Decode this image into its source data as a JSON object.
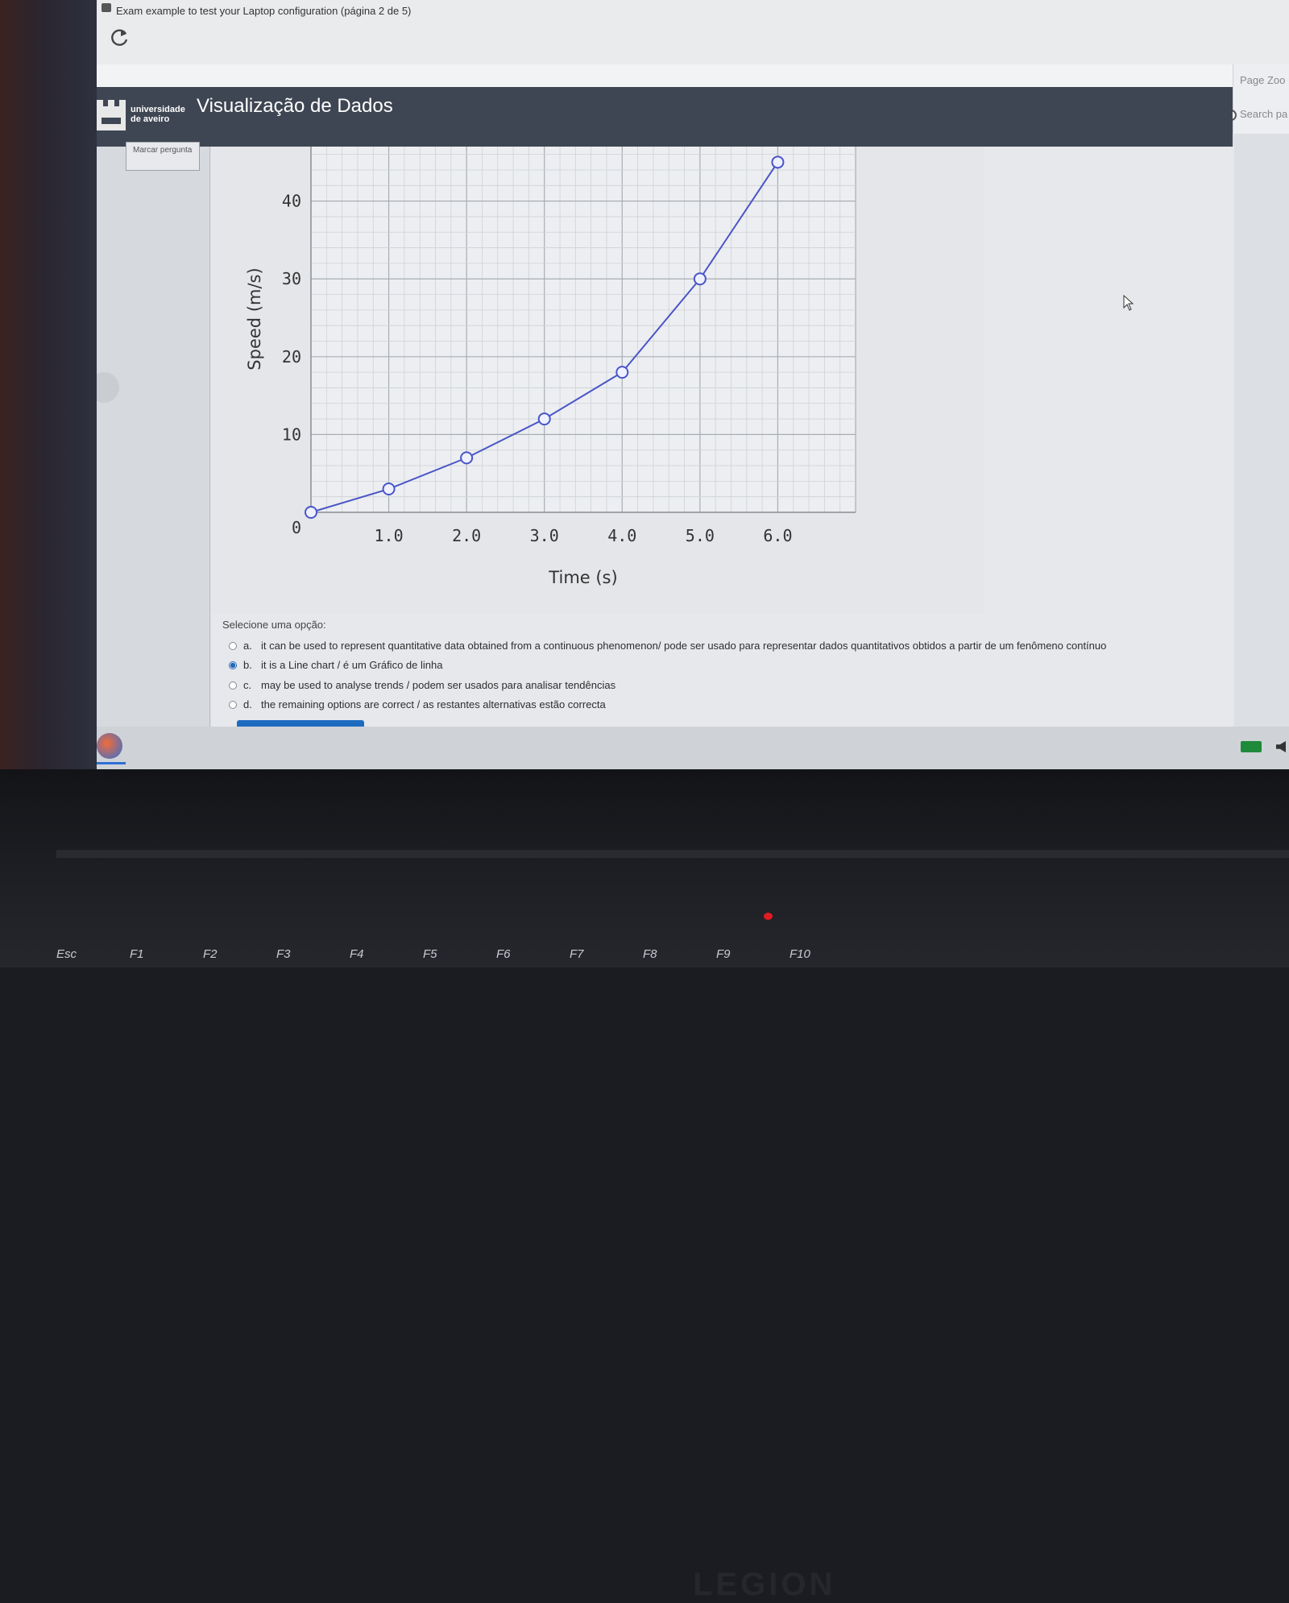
{
  "browser": {
    "tab_title": "Exam example to test your Laptop configuration (página 2 de 5)",
    "page_zoom_label": "Page Zoo",
    "search_label": "Search pa"
  },
  "header": {
    "logo_text_line1": "universidade",
    "logo_text_line2": "de aveiro",
    "title": "Visualização de Dados"
  },
  "flag": {
    "label": "Marcar pergunta"
  },
  "chart_data": {
    "type": "line",
    "title": "",
    "xlabel": "Time (s)",
    "ylabel": "Speed (m/s)",
    "x": [
      0,
      1.0,
      2.0,
      3.0,
      4.0,
      5.0,
      6.0
    ],
    "series": [
      {
        "values": [
          0,
          3,
          7,
          12,
          18,
          30,
          45
        ]
      }
    ],
    "xticks": [
      "0",
      "1.0",
      "2.0",
      "3.0",
      "4.0",
      "5.0",
      "6.0"
    ],
    "yticks": [
      "10",
      "20",
      "30",
      "40"
    ],
    "xlim": [
      0,
      7
    ],
    "ylim": [
      0,
      47
    ],
    "grid": true,
    "line_color": "#4a55c8"
  },
  "question": {
    "prompt": "Selecione uma opção:",
    "options": [
      {
        "letter": "a.",
        "text": "it can be used to represent quantitative data obtained from a continuous phenomenon/ pode ser usado para representar dados quantitativos obtidos a partir de um fenômeno contínuo",
        "selected": false
      },
      {
        "letter": "b.",
        "text": "it is a Line chart / é um Gráfico de linha",
        "selected": true
      },
      {
        "letter": "c.",
        "text": "may be used to analyse trends  / podem ser usados para analisar tendências",
        "selected": false
      },
      {
        "letter": "d.",
        "text": "the remaining options are correct / as restantes alternativas estão correcta",
        "selected": false
      }
    ]
  },
  "keyboard": {
    "keys": [
      "Esc",
      "F1",
      "F2",
      "F3",
      "F4",
      "F5",
      "F6",
      "F7",
      "F8",
      "F9",
      "F10"
    ],
    "brand": "LEGION"
  }
}
